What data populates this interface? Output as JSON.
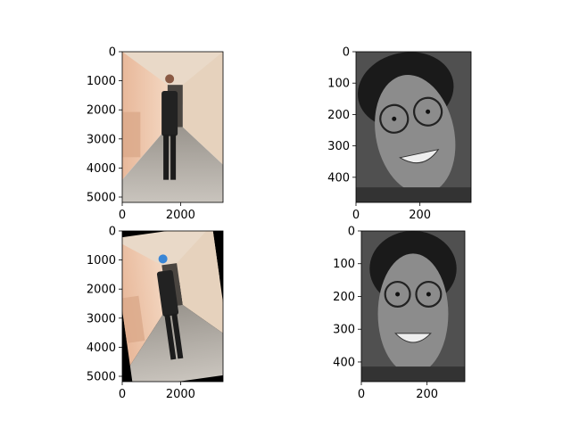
{
  "chart_data": [
    {
      "type": "image",
      "image_content": "full-length photo of a man in a dark suit standing in a corridor",
      "colormap": "color",
      "x_range": [
        0,
        3456
      ],
      "y_range": [
        5184,
        0
      ],
      "x_ticks": [
        {
          "value": 0,
          "label": "0"
        },
        {
          "value": 2000,
          "label": "2000"
        }
      ],
      "y_ticks": [
        {
          "value": 0,
          "label": "0"
        },
        {
          "value": 1000,
          "label": "1000"
        },
        {
          "value": 2000,
          "label": "2000"
        },
        {
          "value": 3000,
          "label": "3000"
        },
        {
          "value": 4000,
          "label": "4000"
        },
        {
          "value": 5000,
          "label": "5000"
        }
      ]
    },
    {
      "type": "image",
      "image_content": "grayscale face crop of a smiling man with glasses, tilted",
      "colormap": "gray",
      "x_range": [
        0,
        360
      ],
      "y_range": [
        480,
        0
      ],
      "x_ticks": [
        {
          "value": 0,
          "label": "0"
        },
        {
          "value": 200,
          "label": "200"
        }
      ],
      "y_ticks": [
        {
          "value": 0,
          "label": "0"
        },
        {
          "value": 100,
          "label": "100"
        },
        {
          "value": 200,
          "label": "200"
        },
        {
          "value": 300,
          "label": "300"
        },
        {
          "value": 400,
          "label": "400"
        }
      ]
    },
    {
      "type": "image",
      "image_content": "rotated copy of the corridor photo with black corners and the face masked in blue",
      "colormap": "color",
      "x_range": [
        0,
        3456
      ],
      "y_range": [
        5184,
        0
      ],
      "x_ticks": [
        {
          "value": 0,
          "label": "0"
        },
        {
          "value": 2000,
          "label": "2000"
        }
      ],
      "y_ticks": [
        {
          "value": 0,
          "label": "0"
        },
        {
          "value": 1000,
          "label": "1000"
        },
        {
          "value": 2000,
          "label": "2000"
        },
        {
          "value": 3000,
          "label": "3000"
        },
        {
          "value": 4000,
          "label": "4000"
        },
        {
          "value": 5000,
          "label": "5000"
        }
      ]
    },
    {
      "type": "image",
      "image_content": "grayscale upright face crop of the smiling man with glasses",
      "colormap": "gray",
      "x_range": [
        0,
        315
      ],
      "y_range": [
        460,
        0
      ],
      "x_ticks": [
        {
          "value": 0,
          "label": "0"
        },
        {
          "value": 200,
          "label": "200"
        }
      ],
      "y_ticks": [
        {
          "value": 0,
          "label": "0"
        },
        {
          "value": 100,
          "label": "100"
        },
        {
          "value": 200,
          "label": "200"
        },
        {
          "value": 300,
          "label": "300"
        },
        {
          "value": 400,
          "label": "400"
        }
      ]
    }
  ]
}
